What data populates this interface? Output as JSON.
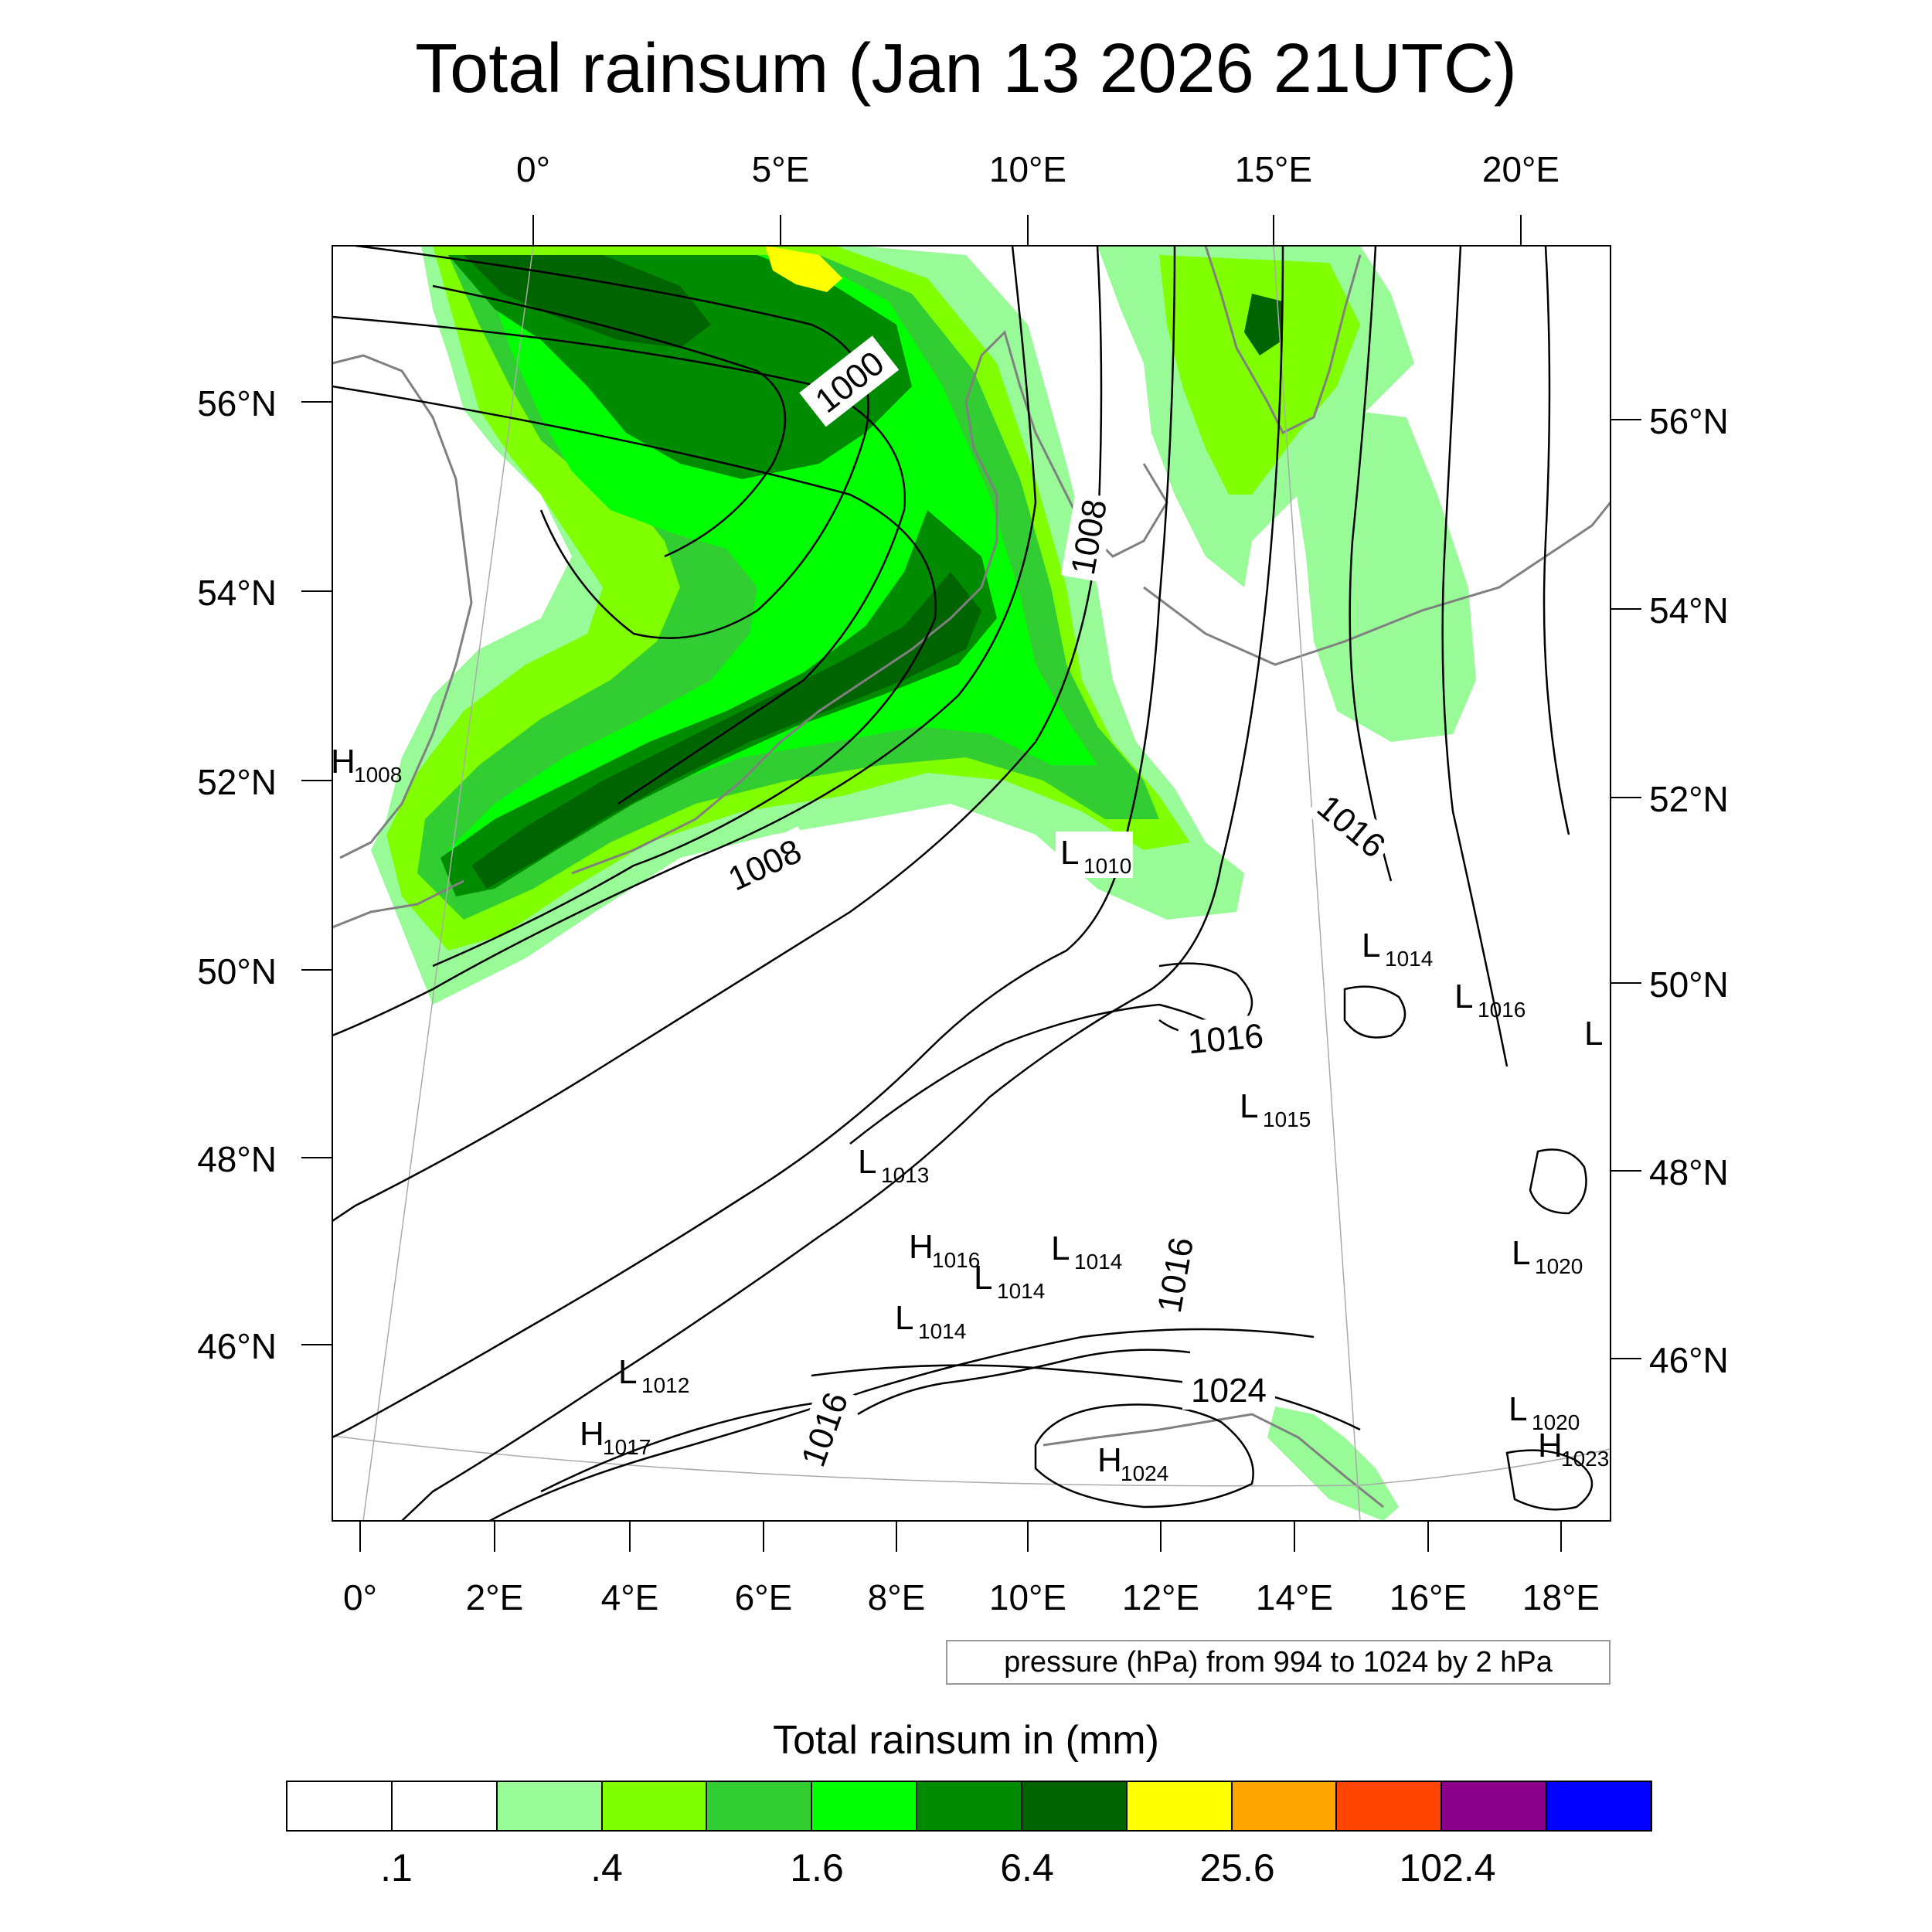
{
  "title": "Total rainsum (Jan 13 2026 21UTC)",
  "axes": {
    "top_lon": [
      "0°",
      "5°E",
      "10°E",
      "15°E",
      "20°E"
    ],
    "bottom_lon": [
      "0°",
      "2°E",
      "4°E",
      "6°E",
      "8°E",
      "10°E",
      "12°E",
      "14°E",
      "16°E",
      "18°E"
    ],
    "left_lat": [
      "56°N",
      "54°N",
      "52°N",
      "50°N",
      "48°N",
      "46°N"
    ],
    "right_lat": [
      "56°N",
      "54°N",
      "52°N",
      "50°N",
      "48°N",
      "46°N"
    ]
  },
  "contour_info": "pressure (hPa) from 994 to 1024 by 2 hPa",
  "isobar_labels": [
    "1000",
    "1008",
    "1008",
    "1016",
    "1016",
    "1016",
    "1016",
    "1024"
  ],
  "pressure_centers": [
    {
      "type": "H",
      "value": "1008"
    },
    {
      "type": "L",
      "value": "1010"
    },
    {
      "type": "L",
      "value": "1014"
    },
    {
      "type": "L",
      "value": "1016"
    },
    {
      "type": "L",
      "value": ""
    },
    {
      "type": "L",
      "value": "1015"
    },
    {
      "type": "L",
      "value": "1013"
    },
    {
      "type": "H",
      "value": "1016"
    },
    {
      "type": "L",
      "value": "1014"
    },
    {
      "type": "L",
      "value": "1014"
    },
    {
      "type": "L",
      "value": "1014"
    },
    {
      "type": "L",
      "value": "1020"
    },
    {
      "type": "L",
      "value": "1012"
    },
    {
      "type": "H",
      "value": "1017"
    },
    {
      "type": "L",
      "value": "1020"
    },
    {
      "type": "H",
      "value": "1023"
    },
    {
      "type": "H",
      "value": "1024"
    }
  ],
  "legend": {
    "title": "Total rainsum in (mm)",
    "colors": [
      "#ffffff",
      "#ffffff",
      "#98fb98",
      "#7fff00",
      "#32cd32",
      "#00ff00",
      "#008b00",
      "#006400",
      "#ffff00",
      "#ffa500",
      "#ff4500",
      "#8b008b",
      "#0000ff"
    ],
    "labels": [
      ".1",
      ".4",
      "1.6",
      "6.4",
      "25.6",
      "102.4"
    ]
  },
  "rain_colors": {
    "light": "#98fb98",
    "chartreuse": "#7fff00",
    "medium": "#32cd32",
    "bright": "#00ff00",
    "dark": "#008b00",
    "darkest": "#006400",
    "heavy": "#ffff00"
  }
}
